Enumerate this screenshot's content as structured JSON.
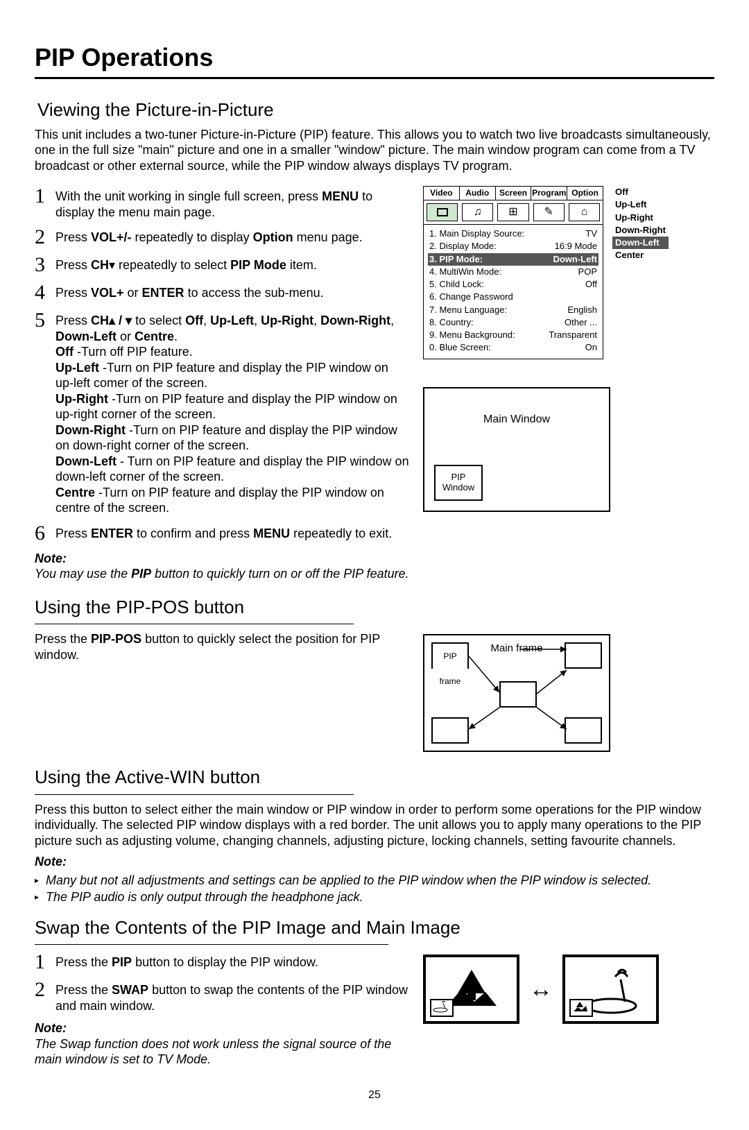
{
  "page_number": "25",
  "title": "PIP Operations",
  "section1": {
    "heading": "Viewing the Picture-in-Picture",
    "intro": "This unit includes a two-tuner Picture-in-Picture (PIP) feature. This allows you to watch two live broadcasts simultaneously, one in the full size \"main\" picture and one in a smaller \"window\" picture. The main window program can come from a TV broadcast or other external source, while the PIP window always displays TV program.",
    "steps": [
      {
        "num": "1",
        "html": "With the unit working in single full screen, press <b>MENU</b> to display the menu main page."
      },
      {
        "num": "2",
        "html": "Press <b>VOL+/-</b> repeatedly to display <b>Option</b> menu page."
      },
      {
        "num": "3",
        "html": "Press <b>CH</b>▾ repeatedly to select <b>PIP Mode</b> item."
      },
      {
        "num": "4",
        "html": "Press <b>VOL+</b> or <b>ENTER</b> to access the sub-menu."
      },
      {
        "num": "5",
        "html": "Press <b>CH▴ / ▾</b> to select <b>Off</b>, <b>Up-Left</b>, <b>Up-Right</b>, <b>Down-Right</b>, <b>Down-Left</b> or <b>Centre</b>.<br><b>Off</b> -Turn off PIP feature.<br><b>Up-Left</b> -Turn on PIP feature and display the PIP window on up-left comer of the screen.<br><b>Up-Right</b> -Turn on PIP feature and display the PIP window on up-right corner of the screen.<br><b>Down-Right</b> -Turn on PIP feature and display the PIP window on down-right corner of the screen.<br><b>Down-Left</b> - Turn on PIP feature and display the PIP window on down-left corner of the screen.<br><b>Centre</b> -Turn on PIP feature and display the PIP window on centre of the screen."
      },
      {
        "num": "6",
        "html": "Press <b>ENTER</b> to confirm and press <b>MENU</b> repeatedly to exit."
      }
    ],
    "note_label": "Note:",
    "note_text": "You may use the <b>PIP</b> button to quickly turn on or off the PIP feature."
  },
  "osd": {
    "tabs": [
      "Video",
      "Audio",
      "Screen",
      "Program",
      "Option"
    ],
    "rows": [
      {
        "l": "1. Main Display Source:",
        "r": "TV",
        "sel": false
      },
      {
        "l": "2. Display Mode:",
        "r": "16:9 Mode",
        "sel": false
      },
      {
        "l": "3. PIP Mode:",
        "r": "Down-Left",
        "sel": true
      },
      {
        "l": "4. MultiWin Mode:",
        "r": "POP",
        "sel": false
      },
      {
        "l": "5. Child Lock:",
        "r": "Off",
        "sel": false
      },
      {
        "l": "6. Change Password",
        "r": "",
        "sel": false
      },
      {
        "l": "7. Menu Language:",
        "r": "English",
        "sel": false
      },
      {
        "l": "8. Country:",
        "r": "Other ...",
        "sel": false
      },
      {
        "l": "9. Menu Background:",
        "r": "Transparent",
        "sel": false
      },
      {
        "l": "0. Blue Screen:",
        "r": "On",
        "sel": false
      }
    ],
    "side_options": [
      {
        "t": "Off",
        "sel": false
      },
      {
        "t": "Up-Left",
        "sel": false
      },
      {
        "t": "Up-Right",
        "sel": false
      },
      {
        "t": "Down-Right",
        "sel": false
      },
      {
        "t": "Down-Left",
        "sel": true
      },
      {
        "t": "Center",
        "sel": false
      }
    ]
  },
  "pip_diagram": {
    "main_label": "Main Window",
    "sub_label": "PIP Window"
  },
  "section2": {
    "heading": "Using the PIP-POS button",
    "text": "Press the <b>PIP-POS</b> button to quickly select the position for PIP window.",
    "pos_main": "Main frame",
    "pos_pip": "PIP frame"
  },
  "section3": {
    "heading": "Using the Active-WIN button",
    "text": "Press this button to select either the main window or PIP window in order to perform some operations for the PIP window individually. The selected PIP window displays with a red border. The unit allows you to apply many operations to the PIP picture such as adjusting volume, changing channels, adjusting picture, locking channels, setting favourite channels.",
    "note_label": "Note:",
    "bullets": [
      "Many but not all adjustments and settings can be applied to the PIP window when the PIP window is selected.",
      "The PIP audio is only output through the headphone jack."
    ]
  },
  "section4": {
    "heading": "Swap the Contents of the PIP Image and Main Image",
    "steps": [
      {
        "num": "1",
        "html": "Press the <b>PIP</b> button to display the PIP window."
      },
      {
        "num": "2",
        "html": "Press the <b>SWAP</b> button to swap the contents of the PIP window and main window."
      }
    ],
    "note_label": "Note:",
    "note_text": "The Swap function does not work unless the signal source of the main window is set to TV Mode."
  }
}
